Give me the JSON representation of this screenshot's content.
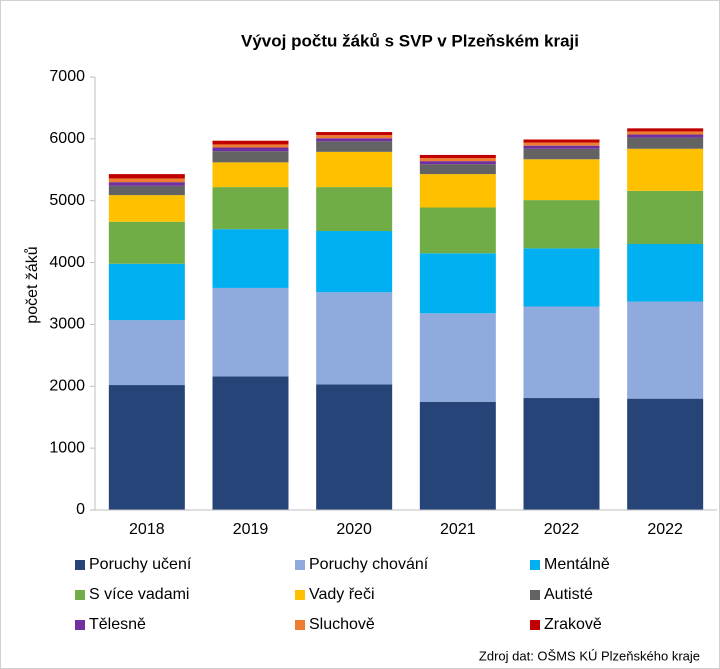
{
  "chart_data": {
    "type": "stacked_bar",
    "title": "Vývoj počtu žáků s SVP  v Plzeňském kraji",
    "y_label": "počet žáků",
    "source": "Zdroj dat: OŠMS KÚ Plzeňského kraje",
    "categories": [
      "2018",
      "2019",
      "2020",
      "2021",
      "2022",
      "2022"
    ],
    "ylim": [
      0,
      7000
    ],
    "yticks": [
      0,
      1000,
      2000,
      3000,
      4000,
      5000,
      6000,
      7000
    ],
    "series": [
      {
        "name": "Poruchy učení",
        "color": "#264478",
        "values": [
          2020,
          2160,
          2030,
          1750,
          1810,
          1800
        ]
      },
      {
        "name": "Poruchy chování",
        "color": "#8faadc",
        "values": [
          1050,
          1430,
          1490,
          1430,
          1480,
          1570
        ]
      },
      {
        "name": "Mentálně",
        "color": "#00b0f0",
        "values": [
          910,
          950,
          990,
          970,
          940,
          930
        ]
      },
      {
        "name": "S více vadami",
        "color": "#70ad47",
        "values": [
          680,
          680,
          710,
          740,
          780,
          860
        ]
      },
      {
        "name": "Vady řeči",
        "color": "#ffc000",
        "values": [
          430,
          400,
          570,
          540,
          660,
          680
        ]
      },
      {
        "name": "Autisté",
        "color": "#636363",
        "values": [
          150,
          180,
          170,
          160,
          170,
          180
        ]
      },
      {
        "name": "Tělesně",
        "color": "#7030a0",
        "values": [
          60,
          60,
          50,
          50,
          50,
          50
        ]
      },
      {
        "name": "Sluchově",
        "color": "#ed7d31",
        "values": [
          60,
          50,
          50,
          50,
          50,
          50
        ]
      },
      {
        "name": "Zrakově",
        "color": "#c00000",
        "values": [
          70,
          60,
          50,
          50,
          50,
          50
        ]
      }
    ]
  }
}
